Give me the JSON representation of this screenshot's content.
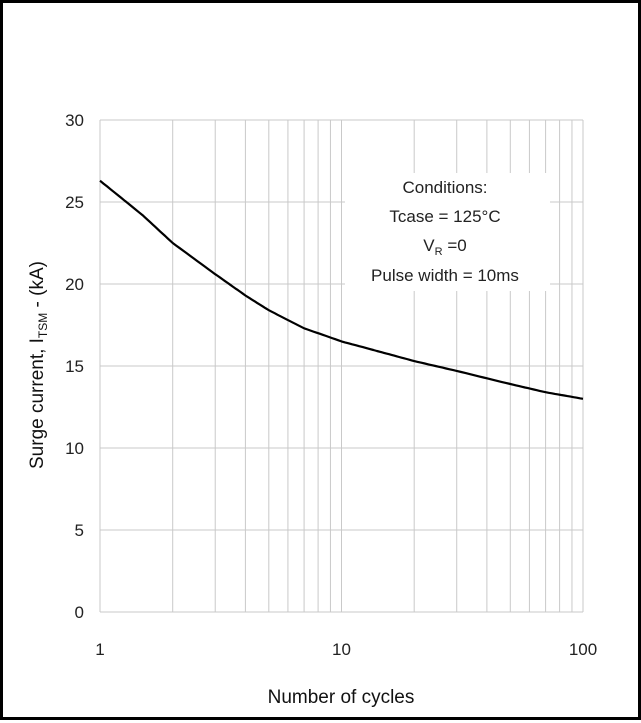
{
  "chart_data": {
    "type": "line",
    "x_scale": "log",
    "xlim": [
      1,
      100
    ],
    "ylim": [
      0,
      30
    ],
    "x_ticks": [
      "1",
      "10",
      "100"
    ],
    "y_ticks": [
      "0",
      "5",
      "10",
      "15",
      "20",
      "25",
      "30"
    ],
    "xlabel": "Number of cycles",
    "ylabel_parts": {
      "prefix": "Surge current, I",
      "subscript": "TSM",
      "suffix": " - (kA)"
    },
    "grid": true,
    "annotation": {
      "lines": [
        {
          "text": "Conditions:"
        },
        {
          "text": "Tcase = 125°C"
        },
        {
          "prefix": "V",
          "subscript": "R",
          "suffix": " =0"
        },
        {
          "text": "Pulse width = 10ms"
        }
      ]
    },
    "series": [
      {
        "x": [
          1,
          1.5,
          2,
          3,
          4,
          5,
          7,
          10,
          15,
          20,
          30,
          50,
          70,
          100
        ],
        "y": [
          26.3,
          24.2,
          22.5,
          20.6,
          19.3,
          18.4,
          17.3,
          16.5,
          15.8,
          15.3,
          14.7,
          13.9,
          13.4,
          13.0
        ]
      }
    ],
    "line_color": "#000000",
    "grid_color": "#c9c9c9"
  }
}
